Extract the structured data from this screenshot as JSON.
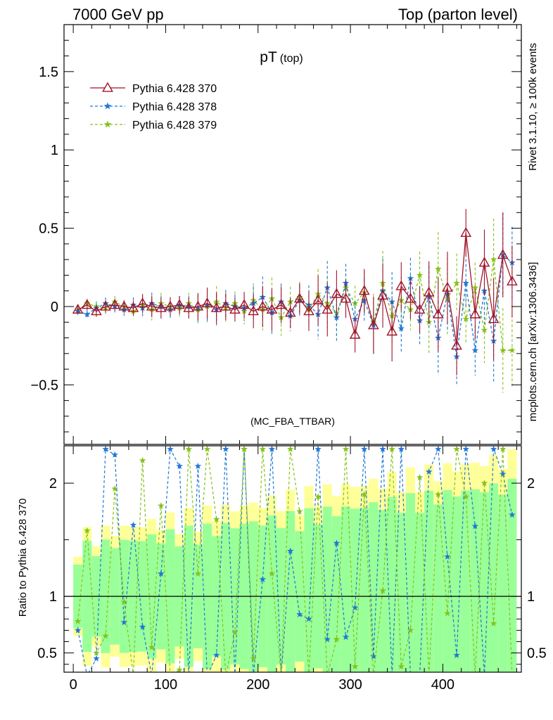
{
  "header": {
    "left": "7000 GeV pp",
    "right": "Top (parton level)",
    "side_top": "Rivet 3.1.10, ≥ 100k events",
    "side_bottom": "mcplots.cern.ch [arXiv:1306.3436]"
  },
  "chart_data": {
    "type": "line",
    "title_main": "pT",
    "title_sub": "(top)",
    "analysis_label": "(MC_FBA_TTBAR)",
    "xlabel": "",
    "ylabel_main": "",
    "ylabel_ratio": "Ratio to Pythia 6.428 370",
    "xlim": [
      -10,
      485
    ],
    "ylim_main": [
      -0.88,
      1.8
    ],
    "ylim_ratio": [
      0.33,
      2.33
    ],
    "xticks": [
      0,
      100,
      200,
      300,
      400
    ],
    "yticks_main": [
      "1.5",
      "1",
      "0.5",
      "0",
      "−0.5"
    ],
    "ytick_main_values": [
      1.5,
      1,
      0.5,
      0,
      -0.5
    ],
    "yticks_ratio": [
      "2",
      "1",
      "0.5"
    ],
    "ytick_ratio_values": [
      2,
      1,
      0.5
    ],
    "reference_line": 1,
    "band_colors": {
      "yellow": "#ffff99",
      "green": "#99ff99"
    },
    "series": [
      {
        "name": "Pythia 6.428 370",
        "color": "#a0142a",
        "style": "solid",
        "marker": "triangle",
        "x": [
          5,
          15,
          25,
          35,
          45,
          55,
          65,
          75,
          85,
          95,
          105,
          115,
          125,
          135,
          145,
          155,
          165,
          175,
          185,
          195,
          205,
          215,
          225,
          235,
          245,
          255,
          265,
          275,
          285,
          295,
          305,
          315,
          325,
          335,
          345,
          355,
          365,
          375,
          385,
          395,
          405,
          415,
          425,
          435,
          445,
          455,
          465,
          475
        ],
        "y": [
          -0.02,
          0.01,
          -0.03,
          0.0,
          0.01,
          0.0,
          -0.01,
          0.02,
          0.0,
          -0.01,
          0.0,
          0.01,
          -0.01,
          0.0,
          0.02,
          -0.01,
          0.0,
          -0.02,
          0.01,
          -0.03,
          0.0,
          -0.02,
          0.01,
          -0.04,
          0.05,
          -0.03,
          0.04,
          -0.02,
          0.08,
          0.05,
          -0.18,
          0.1,
          -0.12,
          0.07,
          -0.16,
          0.13,
          0.05,
          -0.02,
          0.09,
          -0.05,
          0.12,
          -0.25,
          0.47,
          -0.05,
          0.28,
          -0.08,
          0.33,
          0.16
        ]
      },
      {
        "name": "Pythia 6.428 378",
        "color": "#1f78d4",
        "style": "dashed",
        "marker": "star",
        "x": [
          5,
          15,
          25,
          35,
          45,
          55,
          65,
          75,
          85,
          95,
          105,
          115,
          125,
          135,
          145,
          155,
          165,
          175,
          185,
          195,
          205,
          215,
          225,
          235,
          245,
          255,
          265,
          275,
          285,
          295,
          305,
          315,
          325,
          335,
          345,
          355,
          365,
          375,
          385,
          395,
          405,
          415,
          425,
          435,
          445,
          455,
          465,
          475
        ],
        "y": [
          -0.03,
          -0.05,
          -0.01,
          0.02,
          0.0,
          -0.02,
          0.01,
          -0.01,
          0.02,
          0.0,
          -0.02,
          0.01,
          0.0,
          -0.01,
          0.01,
          -0.02,
          0.02,
          0.0,
          -0.01,
          0.02,
          0.06,
          -0.04,
          0.03,
          -0.06,
          0.04,
          0.01,
          -0.05,
          0.12,
          -0.07,
          0.15,
          -0.08,
          0.04,
          -0.12,
          0.1,
          0.03,
          -0.14,
          0.18,
          -0.09,
          0.06,
          -0.2,
          0.08,
          -0.32,
          0.15,
          -0.28,
          0.1,
          -0.22,
          0.33,
          0.28
        ]
      },
      {
        "name": "Pythia 6.428 379",
        "color": "#86c21a",
        "style": "dashed",
        "marker": "star",
        "x": [
          5,
          15,
          25,
          35,
          45,
          55,
          65,
          75,
          85,
          95,
          105,
          115,
          125,
          135,
          145,
          155,
          165,
          175,
          185,
          195,
          205,
          215,
          225,
          235,
          245,
          255,
          265,
          275,
          285,
          295,
          305,
          315,
          325,
          335,
          345,
          355,
          365,
          375,
          385,
          395,
          405,
          415,
          425,
          435,
          445,
          455,
          465,
          475
        ],
        "y": [
          -0.02,
          0.02,
          0.0,
          -0.01,
          0.03,
          0.0,
          -0.03,
          0.01,
          -0.02,
          0.02,
          0.0,
          -0.01,
          0.02,
          -0.02,
          0.0,
          0.03,
          -0.01,
          0.02,
          -0.03,
          0.04,
          -0.02,
          0.05,
          -0.07,
          0.03,
          0.06,
          -0.02,
          0.08,
          0.02,
          -0.04,
          0.12,
          0.02,
          0.09,
          -0.1,
          0.15,
          -0.06,
          0.04,
          -0.02,
          0.2,
          -0.1,
          0.24,
          0.05,
          0.15,
          -0.08,
          0.12,
          -0.15,
          0.3,
          -0.28,
          -0.28
        ]
      }
    ],
    "ratio_series": [
      {
        "name": "Pythia 6.428 378",
        "x": [
          5,
          15,
          25,
          35,
          45,
          55,
          65,
          75,
          85,
          95,
          105,
          115,
          125,
          135,
          145,
          155,
          165,
          175,
          185,
          195,
          205,
          215,
          225,
          235,
          245,
          255,
          265,
          275,
          285,
          295,
          305,
          315,
          325,
          335,
          345,
          355,
          365,
          375,
          385,
          395,
          405,
          415,
          425,
          435,
          445,
          455,
          465,
          475
        ],
        "y": [
          0.7,
          0.3,
          0.45,
          2.3,
          2.25,
          0.77,
          1.63,
          0.73,
          0.3,
          1.2,
          2.3,
          2.15,
          0.3,
          2.15,
          0.3,
          0.48,
          2.3,
          0.3,
          2.3,
          0.3,
          1.15,
          2.3,
          0.3,
          1.4,
          0.84,
          0.8,
          2.3,
          0.62,
          1.47,
          0.64,
          0.9,
          2.3,
          0.47,
          2.3,
          0.3,
          2.3,
          0.3,
          0.3,
          2.1,
          2.3,
          1.35,
          0.48,
          2.3,
          1.62,
          0.3,
          2.3,
          2.08,
          1.72
        ]
      },
      {
        "name": "Pythia 6.428 379",
        "x": [
          5,
          15,
          25,
          35,
          45,
          55,
          65,
          75,
          85,
          95,
          105,
          115,
          125,
          135,
          145,
          155,
          165,
          175,
          185,
          195,
          205,
          215,
          225,
          235,
          245,
          255,
          265,
          275,
          285,
          295,
          305,
          315,
          325,
          335,
          345,
          355,
          365,
          375,
          385,
          395,
          405,
          415,
          425,
          435,
          445,
          455,
          465,
          475
        ],
        "y": [
          0.78,
          1.58,
          0.5,
          0.65,
          1.95,
          0.95,
          0.3,
          2.2,
          0.55,
          1.8,
          0.3,
          0.35,
          2.3,
          1.2,
          2.3,
          1.68,
          0.3,
          0.68,
          2.3,
          0.45,
          2.3,
          1.2,
          0.3,
          2.3,
          1.75,
          0.3,
          1.88,
          0.3,
          0.62,
          2.3,
          0.38,
          1.9,
          0.3,
          1.05,
          2.3,
          0.38,
          0.7,
          2.05,
          0.3,
          1.9,
          0.85,
          2.3,
          1.88,
          0.3,
          2.0,
          0.76,
          2.3,
          0.3
        ]
      }
    ]
  }
}
